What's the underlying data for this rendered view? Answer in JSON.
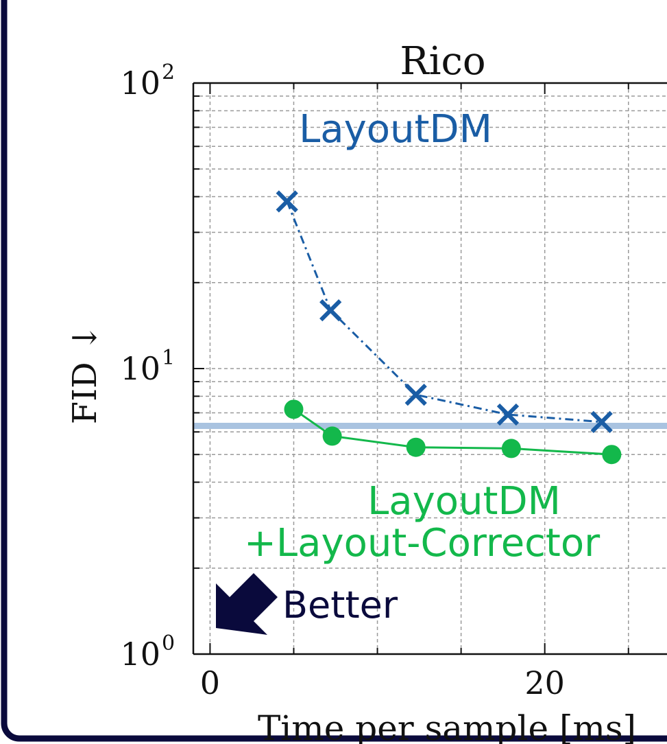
{
  "colors": {
    "frame": "#0a0a3c",
    "layoutdm": "#1a5da5",
    "corrector": "#13b84b",
    "baseline": "#a9c3e0",
    "grid": "#9a9a9a",
    "arrow": "#0a0a3c"
  },
  "chart_data": {
    "type": "line",
    "title": "Rico",
    "xlabel": "Time per sample [ms]",
    "ylabel": "FID ↓",
    "y_scale": "log",
    "xlim": [
      -1,
      28
    ],
    "ylim": [
      1,
      100
    ],
    "x_ticks": [
      0,
      20
    ],
    "x_tick_labels": [
      "0",
      "20"
    ],
    "y_tick_labels": [
      {
        "base": "10",
        "exp": "0",
        "value": 1
      },
      {
        "base": "10",
        "exp": "1",
        "value": 10
      },
      {
        "base": "10",
        "exp": "2",
        "value": 100
      }
    ],
    "grid": true,
    "series": [
      {
        "name": "LayoutDM",
        "marker": "x",
        "line_style": "dash-dot",
        "x": [
          4.6,
          7.2,
          12.3,
          17.8,
          23.4
        ],
        "y": [
          38.5,
          16.0,
          8.1,
          6.9,
          6.5
        ]
      },
      {
        "name": "LayoutDM\n+Layout-Corrector",
        "marker": "o",
        "line_style": "solid",
        "x": [
          5.0,
          7.3,
          12.3,
          18.0,
          24.0
        ],
        "y": [
          7.2,
          5.8,
          5.3,
          5.25,
          5.0
        ]
      }
    ],
    "baseline_y": 6.3,
    "annotations": {
      "series1_label": "LayoutDM",
      "series2_label_line1": "LayoutDM",
      "series2_label_line2": "+Layout-Corrector",
      "better_label": "Better"
    }
  }
}
